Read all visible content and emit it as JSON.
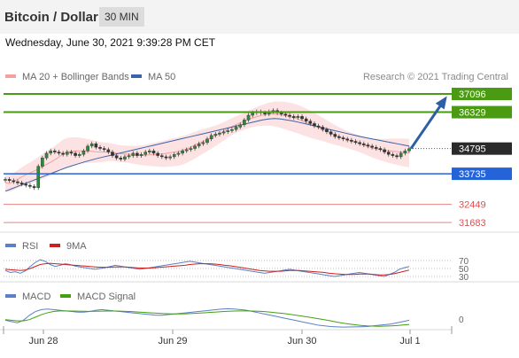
{
  "header": {
    "title": "Bitcoin / Dollar",
    "timeframe": "30 MIN"
  },
  "datetime": "Wednesday, June 30, 2021 9:39:28 PM CET",
  "copyright": "Research © 2021 Trading Central",
  "colors": {
    "bollinger": "#f4a0a0",
    "ma50": "#3a63a8",
    "resistance": "#4a9a12",
    "support": "#2563d9",
    "support2": "#e05050",
    "arrow": "#2e5fa6",
    "rsi": "#5a80c8",
    "rsi_ma": "#cc2020",
    "macd": "#5a80c8",
    "macd_signal": "#44a012",
    "candle_up": "#2d8a3a"
  },
  "chart_data": [
    {
      "type": "candlestick",
      "panel": "price",
      "legend": [
        "MA 20 + Bollinger Bands",
        "MA 50"
      ],
      "x_ticks": [
        "Jun 28",
        "Jun 29",
        "Jun 30",
        "Jul 1"
      ],
      "ylim": [
        31000,
        37800
      ],
      "price_levels": [
        {
          "value": 37096,
          "label": "37096",
          "kind": "resistance"
        },
        {
          "value": 36329,
          "label": "36329",
          "kind": "resistance"
        },
        {
          "value": 34795,
          "label": "34795",
          "kind": "current"
        },
        {
          "value": 33735,
          "label": "33735",
          "kind": "support"
        },
        {
          "value": 32449,
          "label": "32449",
          "kind": "support2"
        },
        {
          "value": 31683,
          "label": "31683",
          "kind": "support2"
        }
      ],
      "closes": [
        33500,
        33450,
        33400,
        33350,
        33300,
        33250,
        33200,
        33150,
        34050,
        34400,
        34600,
        34700,
        34650,
        34600,
        34550,
        34650,
        34600,
        34500,
        34550,
        34700,
        34900,
        35000,
        34850,
        34800,
        34750,
        34650,
        34500,
        34400,
        34350,
        34450,
        34500,
        34600,
        34500,
        34550,
        34650,
        34700,
        34600,
        34500,
        34450,
        34400,
        34450,
        34550,
        34600,
        34700,
        34750,
        34800,
        34900,
        35000,
        35050,
        35200,
        35350,
        35400,
        35450,
        35500,
        35550,
        35600,
        35700,
        35800,
        36000,
        36200,
        36300,
        36350,
        36300,
        36250,
        36350,
        36400,
        36300,
        36250,
        36200,
        36150,
        36100,
        36150,
        36050,
        35950,
        35850,
        35750,
        35700,
        35600,
        35500,
        35400,
        35300,
        35250,
        35200,
        35150,
        35100,
        35050,
        35000,
        34950,
        34900,
        34850,
        34800,
        34750,
        34650,
        34550,
        34500,
        34450,
        34600,
        34700,
        34795
      ],
      "ma50_series": [
        33000,
        33100,
        33200,
        33300,
        33400,
        33500,
        33600,
        33700,
        33800,
        33900,
        34000,
        34080,
        34160,
        34240,
        34310,
        34380,
        34440,
        34500,
        34560,
        34620,
        34680,
        34740,
        34800,
        34860,
        34920,
        34980,
        35040,
        35100,
        35160,
        35220,
        35280,
        35340,
        35400,
        35460,
        35520,
        35580,
        35640,
        35700,
        35760,
        35820,
        35880,
        35940,
        36000,
        36040,
        36060,
        36040,
        36000,
        35960,
        35900,
        35840,
        35780,
        35720,
        35660,
        35600,
        35540,
        35480,
        35420,
        35360,
        35300,
        35250,
        35200,
        35150,
        35100,
        35050,
        35000,
        34950,
        34900
      ],
      "annotation": {
        "type": "arrow",
        "from_value": 34795,
        "to_value": 37096
      }
    },
    {
      "type": "line",
      "panel": "rsi",
      "legend": [
        "RSI",
        "9MA"
      ],
      "levels": [
        70,
        50,
        30
      ],
      "ylim": [
        0,
        100
      ],
      "series": [
        {
          "name": "RSI",
          "values": [
            45,
            40,
            42,
            38,
            44,
            55,
            65,
            72,
            68,
            60,
            55,
            58,
            62,
            60,
            56,
            54,
            52,
            50,
            48,
            50,
            52,
            55,
            58,
            56,
            54,
            52,
            50,
            48,
            50,
            52,
            54,
            56,
            58,
            60,
            62,
            64,
            66,
            68,
            66,
            64,
            62,
            60,
            58,
            56,
            54,
            52,
            50,
            48,
            46,
            44,
            42,
            40,
            38,
            40,
            42,
            44,
            46,
            48,
            46,
            44,
            42,
            40,
            38,
            36,
            34,
            32,
            30,
            32,
            34,
            36,
            38,
            40,
            38,
            36,
            34,
            32,
            30,
            35,
            40,
            48,
            52,
            55
          ]
        },
        {
          "name": "9MA",
          "values": [
            48,
            47,
            46,
            45,
            46,
            50,
            55,
            60,
            62,
            63,
            62,
            61,
            60,
            59,
            58,
            57,
            56,
            55,
            54,
            53,
            53,
            53,
            54,
            54,
            54,
            53,
            52,
            51,
            51,
            51,
            52,
            53,
            54,
            55,
            56,
            57,
            58,
            60,
            61,
            62,
            62,
            62,
            61,
            60,
            58,
            57,
            55,
            53,
            51,
            49,
            47,
            45,
            44,
            43,
            43,
            43,
            44,
            45,
            45,
            45,
            44,
            43,
            42,
            41,
            40,
            38,
            37,
            36,
            35,
            35,
            35,
            36,
            36,
            36,
            35,
            34,
            34,
            35,
            37,
            40,
            43,
            46
          ]
        }
      ]
    },
    {
      "type": "line",
      "panel": "macd",
      "legend": [
        "MACD",
        "MACD Signal"
      ],
      "levels": [
        0
      ],
      "ylim": [
        -300,
        300
      ],
      "series": [
        {
          "name": "MACD",
          "values": [
            -20,
            -40,
            -60,
            -20,
            60,
            120,
            150,
            160,
            150,
            140,
            130,
            120,
            110,
            110,
            120,
            140,
            150,
            140,
            130,
            120,
            110,
            100,
            90,
            80,
            70,
            60,
            60,
            70,
            80,
            90,
            100,
            110,
            120,
            130,
            140,
            150,
            160,
            165,
            160,
            150,
            140,
            120,
            100,
            80,
            60,
            40,
            20,
            0,
            -20,
            -40,
            -60,
            -80,
            -100,
            -110,
            -120,
            -125,
            -130,
            -128,
            -126,
            -124,
            -120,
            -110,
            -100,
            -90,
            -80,
            -60,
            -40,
            -20
          ]
        },
        {
          "name": "MACD Signal",
          "values": [
            -10,
            -20,
            -30,
            -30,
            -10,
            30,
            70,
            100,
            120,
            130,
            130,
            128,
            126,
            124,
            122,
            124,
            126,
            128,
            128,
            126,
            122,
            118,
            112,
            106,
            100,
            94,
            88,
            84,
            82,
            82,
            84,
            88,
            94,
            100,
            106,
            112,
            118,
            124,
            128,
            130,
            130,
            128,
            124,
            118,
            110,
            100,
            90,
            78,
            64,
            50,
            36,
            20,
            4,
            -12,
            -30,
            -50,
            -66,
            -80,
            -92,
            -102,
            -110,
            -114,
            -116,
            -114,
            -110,
            -104,
            -96,
            -88
          ]
        }
      ]
    }
  ]
}
